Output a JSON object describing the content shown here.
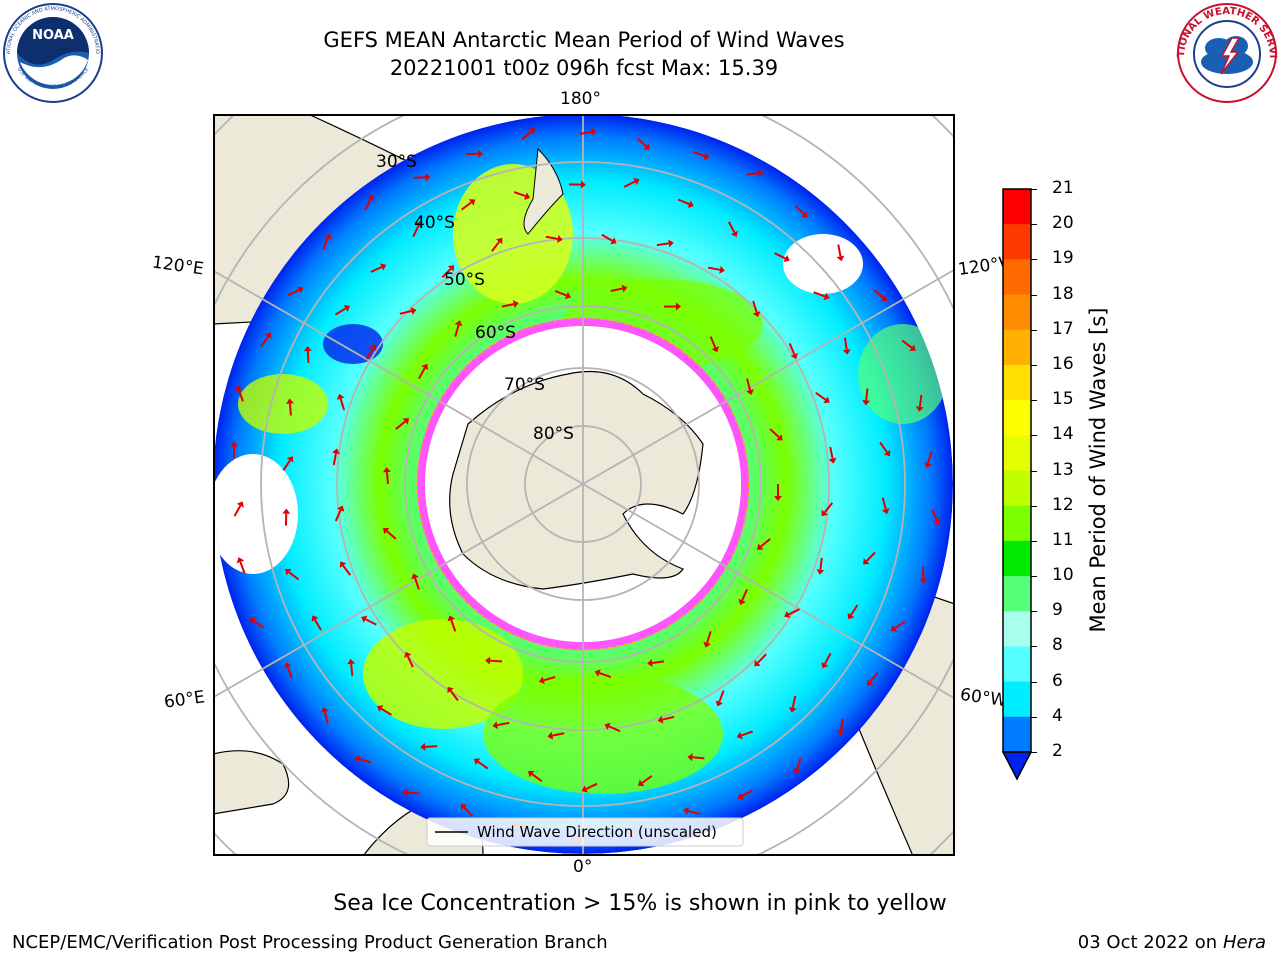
{
  "header": {
    "title_line1": "GEFS MEAN Antarctic Mean Period of Wind Waves",
    "title_line2": "20221001 t00z 096h fcst   Max: 15.39"
  },
  "logos": {
    "noaa": {
      "text": "NOAA",
      "ring_text": "NATIONAL OCEANIC AND ATMOSPHERIC ADMINISTRATION",
      "ring_text_bottom": "U.S. DEPARTMENT OF COMMERCE"
    },
    "nws": {
      "ring_text": "NATIONAL WEATHER SERVICE"
    }
  },
  "map": {
    "projection": "south-polar-stereographic",
    "longitude_labels": {
      "top": "180°",
      "bottom": "0°",
      "left_upper": "120°E",
      "left_lower": "60°E",
      "right_upper": "120°W",
      "right_lower": "60°W"
    },
    "latitude_labels": [
      "30°S",
      "40°S",
      "50°S",
      "60°S",
      "70°S",
      "80°S"
    ],
    "legend_label": "Wind Wave Direction (unscaled)",
    "arrow_color": "#e00000",
    "sea_ice_colors": [
      "#ff55ff",
      "#ffb000"
    ],
    "land_color": "#ece9d8"
  },
  "colorbar": {
    "label": "Mean Period of Wind Waves [s]",
    "ticks": [
      "21",
      "20",
      "19",
      "18",
      "17",
      "16",
      "15",
      "14",
      "13",
      "12",
      "11",
      "10",
      "9",
      "8",
      "6",
      "4",
      "2"
    ],
    "colors": [
      "#ff0000",
      "#ff3a00",
      "#ff6a00",
      "#ff8c00",
      "#ffb000",
      "#ffe000",
      "#ffff00",
      "#e6ff00",
      "#c0ff00",
      "#7cff00",
      "#00ea00",
      "#55ff77",
      "#a8ffee",
      "#55ffff",
      "#00ecff",
      "#007bff",
      "#0022ee"
    ]
  },
  "note": "Sea Ice Concentration > 15% is shown in pink to yellow",
  "footer": {
    "left": "NCEP/EMC/Verification Post Processing Product Generation Branch",
    "right_date": "03 Oct 2022 on ",
    "right_host": "Hera"
  }
}
